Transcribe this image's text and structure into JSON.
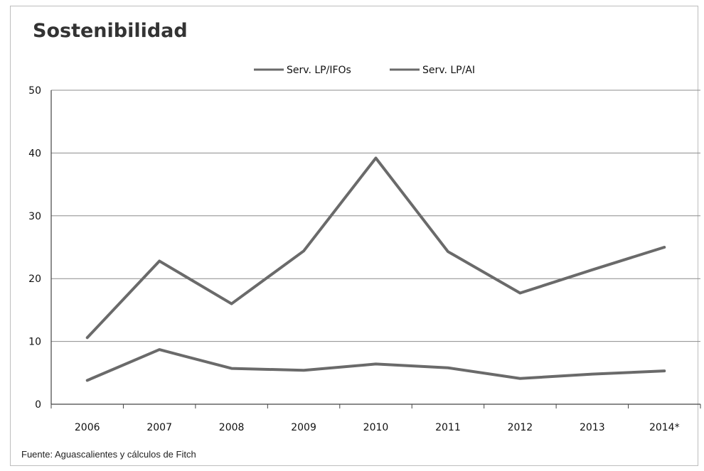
{
  "source_note": "Fuente: Aguascalientes y cálculos de Fitch",
  "colors": {
    "series1": "#6a6a6a",
    "series2": "#6a6a6a",
    "grid": "#8c8c8c",
    "axis": "#444444"
  },
  "chart_data": {
    "type": "line",
    "title": "Sostenibilidad",
    "xlabel": "",
    "ylabel": "",
    "categories": [
      "2006",
      "2007",
      "2008",
      "2009",
      "2010",
      "2011",
      "2012",
      "2013",
      "2014*"
    ],
    "ylim": [
      0,
      50
    ],
    "yticks": [
      0,
      10,
      20,
      30,
      40,
      50
    ],
    "grid": true,
    "legend": "top-center",
    "series": [
      {
        "name": "Serv. LP/IFOs",
        "values": [
          10.6,
          22.8,
          16.0,
          24.4,
          39.2,
          24.3,
          17.7,
          21.4,
          25.0
        ]
      },
      {
        "name": "Serv. LP/AI",
        "values": [
          3.8,
          8.7,
          5.7,
          5.4,
          6.4,
          5.8,
          4.1,
          4.8,
          5.3
        ]
      }
    ]
  }
}
